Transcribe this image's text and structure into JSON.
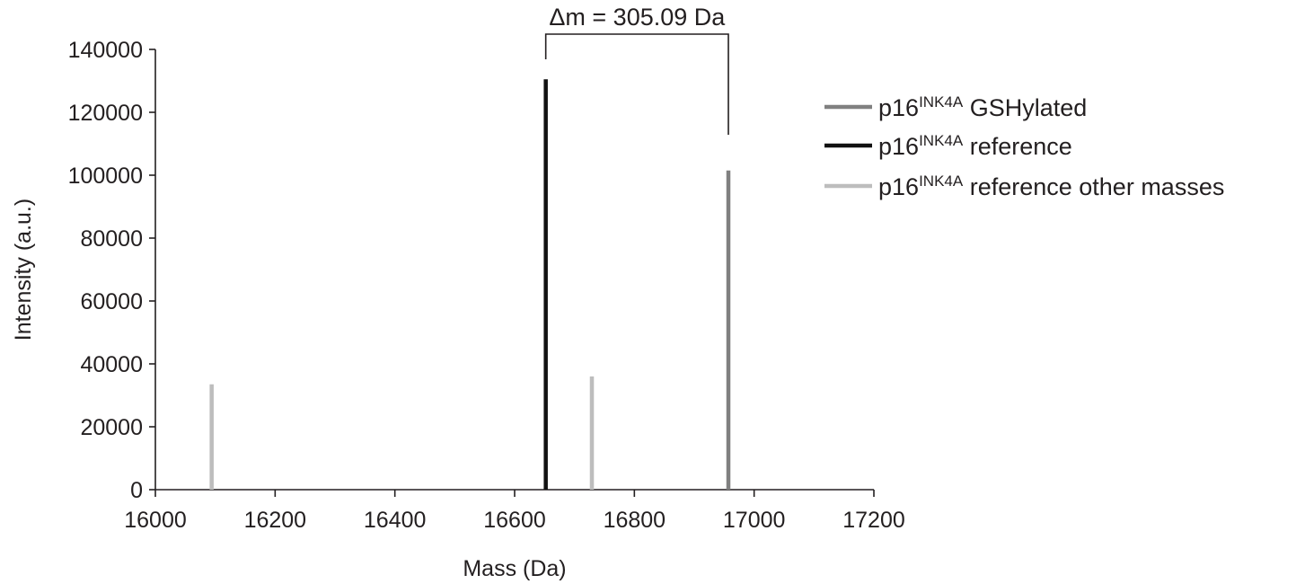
{
  "chart_data": {
    "type": "bar",
    "xlabel": "Mass (Da)",
    "ylabel": "Intensity (a.u.)",
    "xlim": [
      16000,
      17200
    ],
    "ylim": [
      0,
      140000
    ],
    "x_ticks": [
      16000,
      16200,
      16400,
      16600,
      16800,
      17000,
      17200
    ],
    "y_ticks": [
      0,
      20000,
      40000,
      60000,
      80000,
      100000,
      120000,
      140000
    ],
    "grid": false,
    "legend_position": "right",
    "series": [
      {
        "name": "p16INK4A GSHylated",
        "legend": {
          "prefix": "p16",
          "sup": "INK4A",
          "suffix": " GSHylated"
        },
        "color": "#808080",
        "points": [
          {
            "x": 16957,
            "y": 101500
          }
        ]
      },
      {
        "name": "p16INK4A reference",
        "legend": {
          "prefix": "p16",
          "sup": "INK4A",
          "suffix": " reference"
        },
        "color": "#111111",
        "points": [
          {
            "x": 16652,
            "y": 130500
          }
        ]
      },
      {
        "name": "p16INK4A reference other masses",
        "legend": {
          "prefix": "p16",
          "sup": "INK4A",
          "suffix": " reference other masses"
        },
        "color": "#bdbdbd",
        "points": [
          {
            "x": 16094,
            "y": 33500
          },
          {
            "x": 16729,
            "y": 36000
          }
        ]
      }
    ],
    "annotation": {
      "text": "Δm = 305.09 Da",
      "x_from": 16652,
      "x_to": 16957
    }
  }
}
